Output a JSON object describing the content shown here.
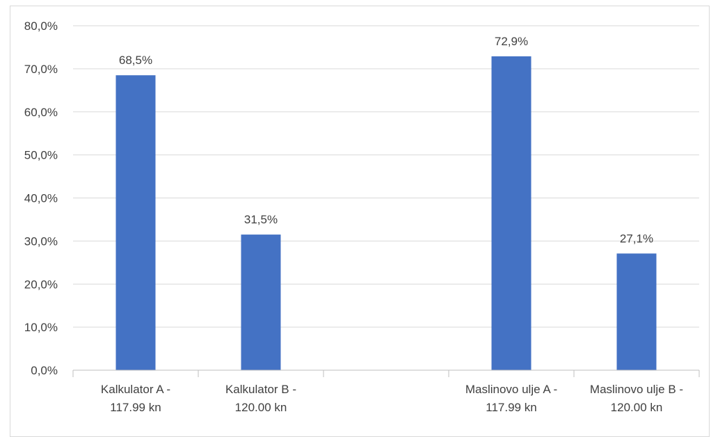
{
  "chart_data": {
    "type": "bar",
    "categories": [
      [
        "Kalkulator A -",
        "117.99 kn"
      ],
      [
        "Kalkulator B -",
        "120.00 kn"
      ],
      [
        "",
        ""
      ],
      [
        "Maslinovo ulje A -",
        "117.99 kn"
      ],
      [
        "Maslinovo ulje B -",
        "120.00 kn"
      ]
    ],
    "values": [
      68.5,
      31.5,
      null,
      72.9,
      27.1
    ],
    "data_labels": [
      "68,5%",
      "31,5%",
      "",
      "72,9%",
      "27,1%"
    ],
    "y_ticks": [
      "0,0%",
      "10,0%",
      "20,0%",
      "30,0%",
      "40,0%",
      "50,0%",
      "60,0%",
      "70,0%",
      "80,0%"
    ],
    "ylim": [
      0,
      80
    ],
    "grid": true,
    "legend": "none",
    "title": "",
    "xlabel": "",
    "ylabel": ""
  },
  "colors": {
    "bar": "#4472C4",
    "grid": "#d9d9d9",
    "axis": "#bfbfbf",
    "text": "#404040"
  }
}
